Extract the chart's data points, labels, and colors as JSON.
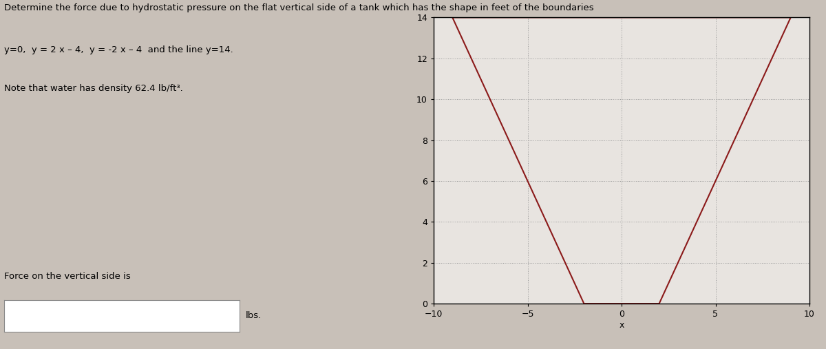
{
  "title_line1": "Determine the force due to hydrostatic pressure on the flat vertical side of a tank which has the shape in feet of the boundaries",
  "title_line2": "y=0,  y = 2 x – 4,  y = -2 x – 4  and the line y=14.",
  "title_line3": "Note that water has density 62.4 lb/ft³.",
  "xlabel": "x",
  "ylabel": "",
  "xlim": [
    -10,
    10
  ],
  "ylim": [
    0,
    14
  ],
  "xticks": [
    -10,
    -5,
    0,
    5,
    10
  ],
  "yticks": [
    0,
    2,
    4,
    6,
    8,
    10,
    12,
    14
  ],
  "shape_x": [
    -9,
    9,
    2,
    -2,
    -9
  ],
  "shape_y": [
    14,
    14,
    0,
    0,
    14
  ],
  "shape_color": "#8B1A1A",
  "shape_linewidth": 1.5,
  "grid_color": "#999999",
  "grid_linestyle": ":",
  "bg_color": "#c8c0b8",
  "plot_bg_color": "#e8e4e0",
  "bottom_label": "Force on the vertical side is",
  "bottom_unit": "lbs.",
  "figure_width": 12.0,
  "figure_height": 5.07,
  "dpi": 100,
  "font_size_text": 9.5,
  "font_size_axis": 9
}
